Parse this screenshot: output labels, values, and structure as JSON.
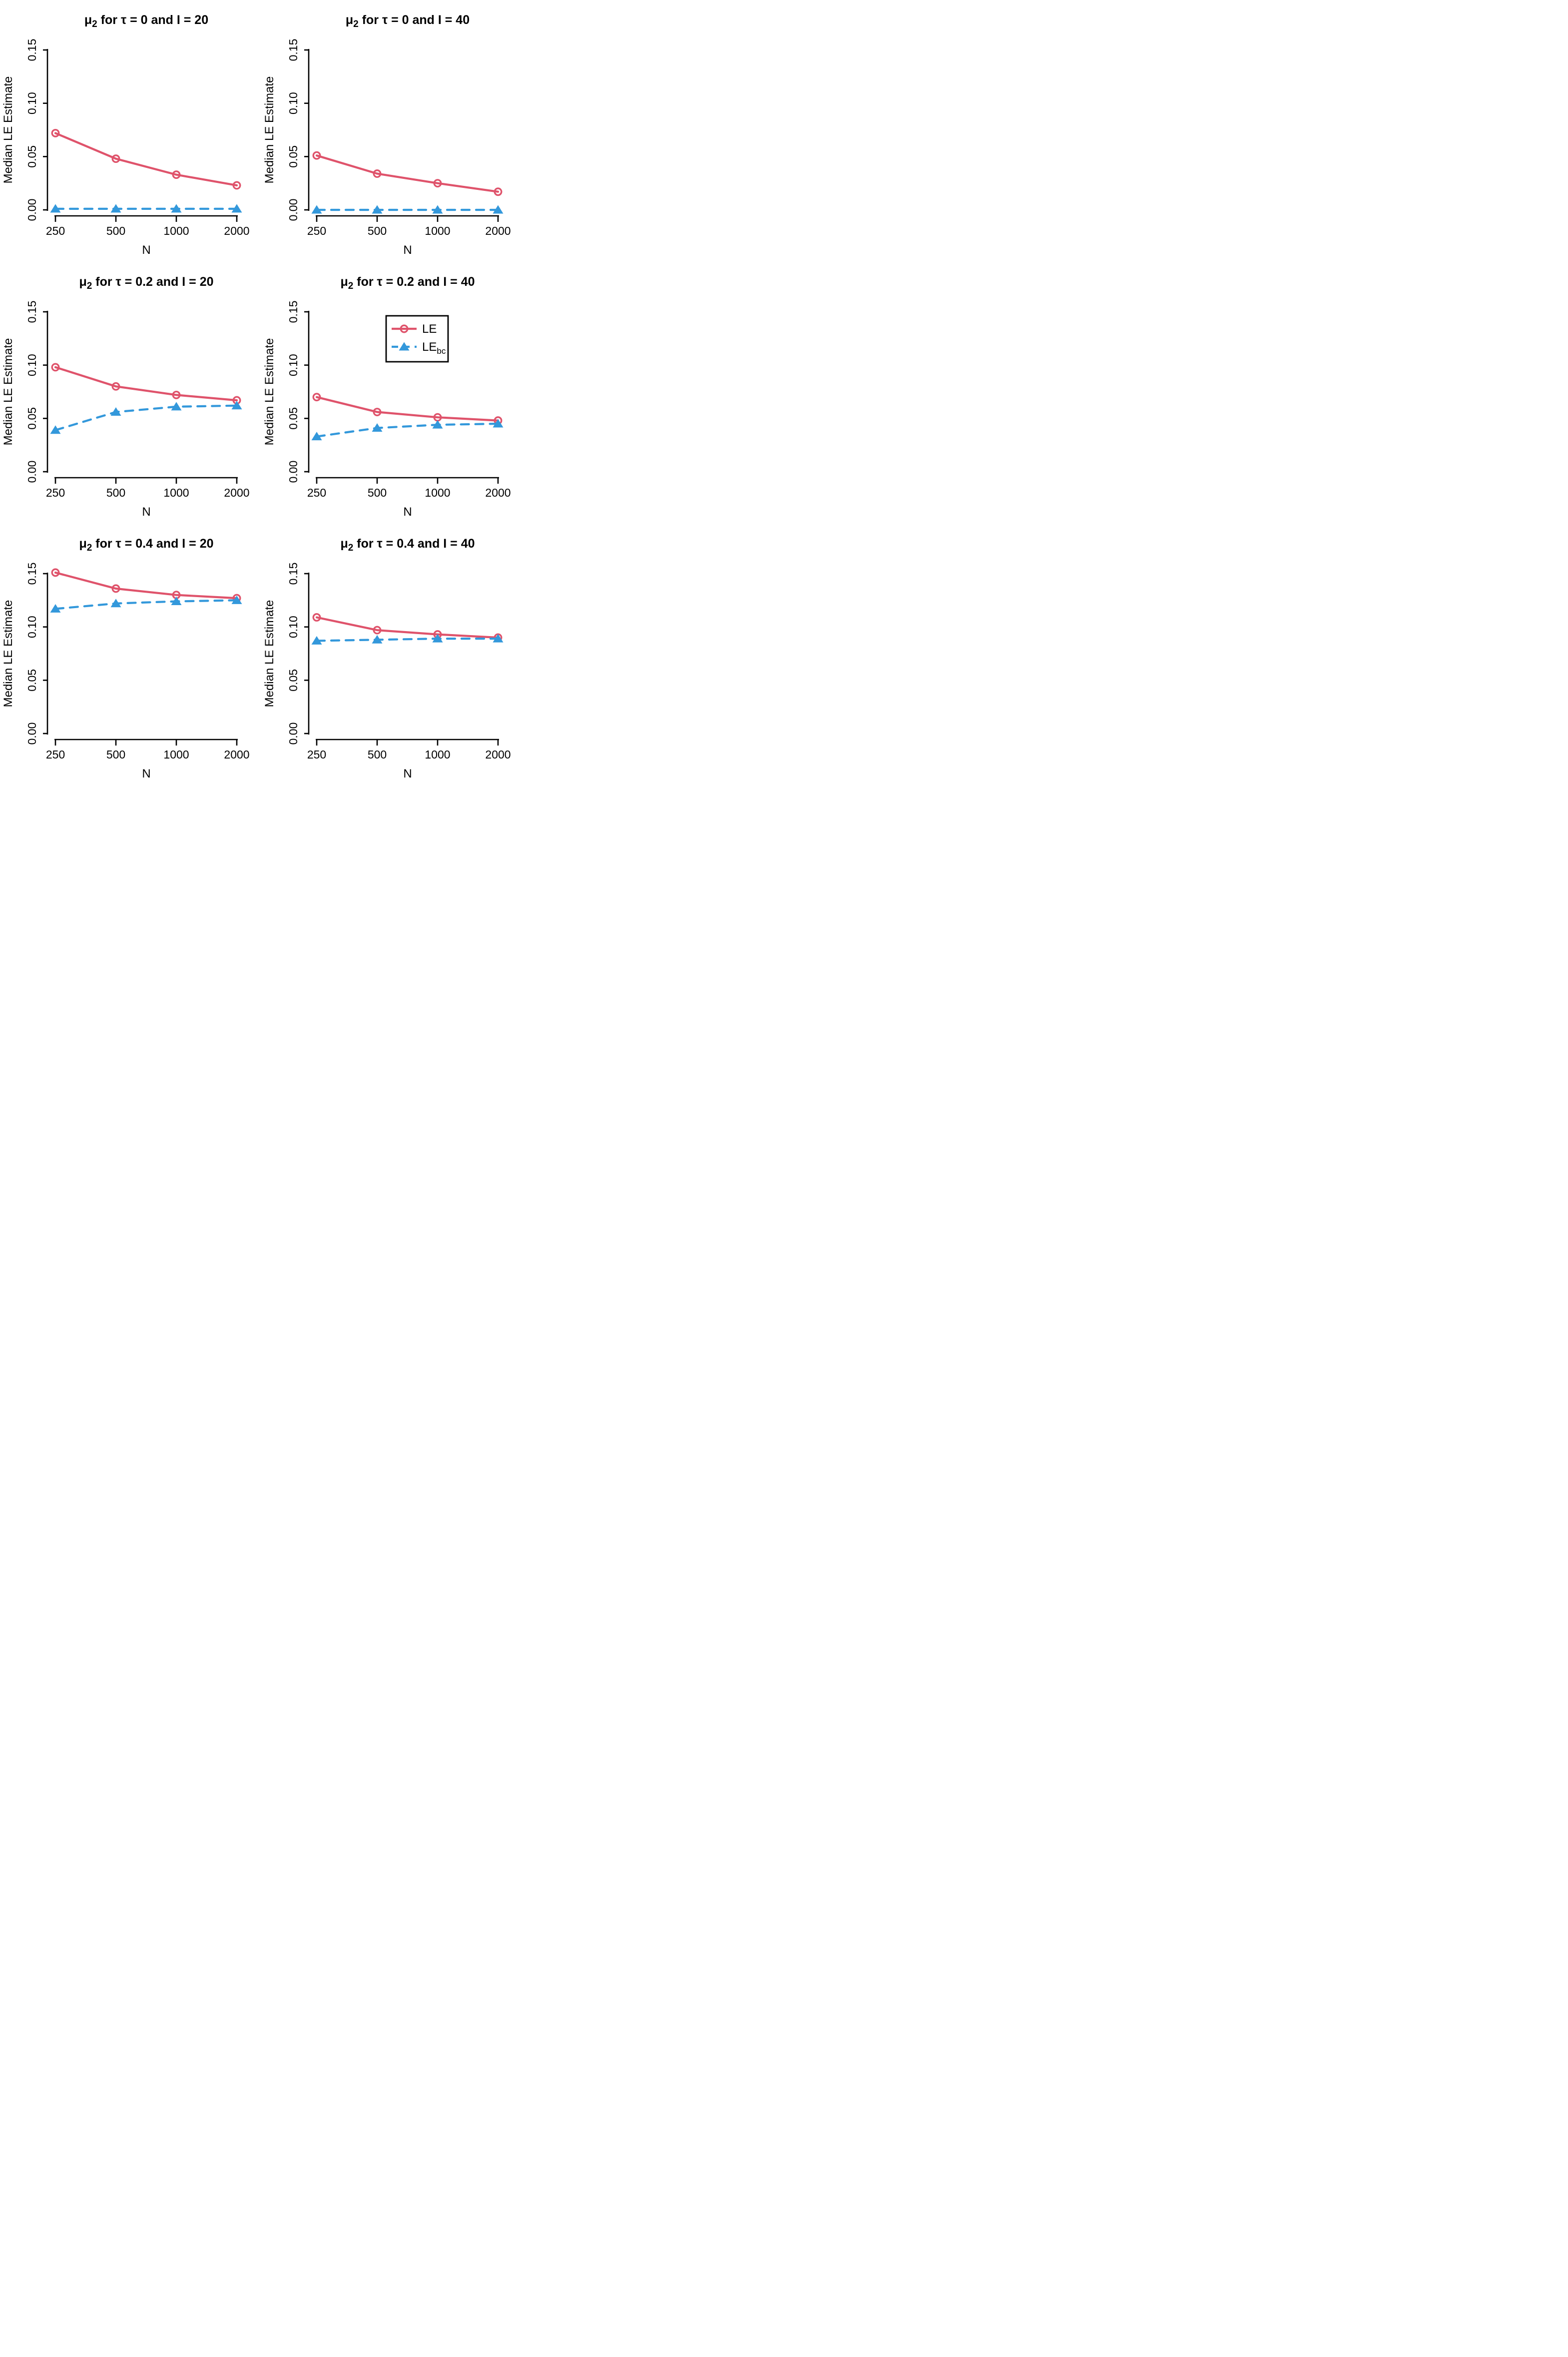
{
  "page": {
    "background": "#ffffff"
  },
  "styles": {
    "le_color": "#DF536B",
    "lebc_color": "#3398DB",
    "axis_color": "#000000",
    "text_color": "#000000"
  },
  "axes": {
    "xlabel": "N",
    "ylabel": "Median LE Estimate",
    "x_tick_labels": [
      "250",
      "500",
      "1000",
      "2000"
    ],
    "y_tick_labels": [
      "0.00",
      "0.05",
      "0.10",
      "0.15"
    ],
    "y_tick_values": [
      0,
      0.05,
      0.1,
      0.15
    ],
    "ylim": [
      0,
      0.15
    ],
    "x_scale_note": "log2-spaced categories"
  },
  "legend": {
    "panel_index": 3,
    "position": "top-center",
    "items": [
      {
        "label": "LE",
        "sub": "",
        "series": "LE"
      },
      {
        "label": "LE",
        "sub": "bc",
        "series": "LEbc"
      }
    ]
  },
  "chart_data": [
    {
      "type": "line",
      "id": "tau0-i20",
      "title": {
        "mu": "μ",
        "sub": "2",
        "rest": " for τ = 0 and I = 20"
      },
      "xlabel": "N",
      "ylabel": "Median LE Estimate",
      "x": [
        250,
        500,
        1000,
        2000
      ],
      "ylim": [
        0,
        0.15
      ],
      "series": [
        {
          "name": "LE",
          "marker": "circle",
          "line": "solid",
          "values": [
            0.072,
            0.048,
            0.033,
            0.023
          ]
        },
        {
          "name": "LEbc",
          "marker": "triangle",
          "line": "dashed",
          "values": [
            0.001,
            0.001,
            0.001,
            0.001
          ]
        }
      ]
    },
    {
      "type": "line",
      "id": "tau0-i40",
      "title": {
        "mu": "μ",
        "sub": "2",
        "rest": " for τ = 0 and I = 40"
      },
      "xlabel": "N",
      "ylabel": "Median LE Estimate",
      "x": [
        250,
        500,
        1000,
        2000
      ],
      "ylim": [
        0,
        0.15
      ],
      "series": [
        {
          "name": "LE",
          "marker": "circle",
          "line": "solid",
          "values": [
            0.051,
            0.034,
            0.025,
            0.017
          ]
        },
        {
          "name": "LEbc",
          "marker": "triangle",
          "line": "dashed",
          "values": [
            0.0,
            0.0,
            0.0,
            0.0
          ]
        }
      ]
    },
    {
      "type": "line",
      "id": "tau02-i20",
      "title": {
        "mu": "μ",
        "sub": "2",
        "rest": " for τ = 0.2 and I = 20"
      },
      "xlabel": "N",
      "ylabel": "Median LE Estimate",
      "x": [
        250,
        500,
        1000,
        2000
      ],
      "ylim": [
        0,
        0.15
      ],
      "series": [
        {
          "name": "LE",
          "marker": "circle",
          "line": "solid",
          "values": [
            0.098,
            0.08,
            0.072,
            0.067
          ]
        },
        {
          "name": "LEbc",
          "marker": "triangle",
          "line": "dashed",
          "values": [
            0.039,
            0.056,
            0.061,
            0.062
          ]
        }
      ]
    },
    {
      "type": "line",
      "id": "tau02-i40",
      "title": {
        "mu": "μ",
        "sub": "2",
        "rest": " for τ = 0.2 and I = 40"
      },
      "xlabel": "N",
      "ylabel": "Median LE Estimate",
      "x": [
        250,
        500,
        1000,
        2000
      ],
      "ylim": [
        0,
        0.15
      ],
      "series": [
        {
          "name": "LE",
          "marker": "circle",
          "line": "solid",
          "values": [
            0.07,
            0.056,
            0.051,
            0.048
          ]
        },
        {
          "name": "LEbc",
          "marker": "triangle",
          "line": "dashed",
          "values": [
            0.033,
            0.041,
            0.044,
            0.045
          ]
        }
      ]
    },
    {
      "type": "line",
      "id": "tau04-i20",
      "title": {
        "mu": "μ",
        "sub": "2",
        "rest": " for τ = 0.4 and I = 20"
      },
      "xlabel": "N",
      "ylabel": "Median LE Estimate",
      "x": [
        250,
        500,
        1000,
        2000
      ],
      "ylim": [
        0,
        0.15
      ],
      "series": [
        {
          "name": "LE",
          "marker": "circle",
          "line": "solid",
          "values": [
            0.151,
            0.136,
            0.13,
            0.127
          ]
        },
        {
          "name": "LEbc",
          "marker": "triangle",
          "line": "dashed",
          "values": [
            0.117,
            0.122,
            0.124,
            0.125
          ]
        }
      ]
    },
    {
      "type": "line",
      "id": "tau04-i40",
      "title": {
        "mu": "μ",
        "sub": "2",
        "rest": " for τ = 0.4 and I = 40"
      },
      "xlabel": "N",
      "ylabel": "Median LE Estimate",
      "x": [
        250,
        500,
        1000,
        2000
      ],
      "ylim": [
        0,
        0.15
      ],
      "series": [
        {
          "name": "LE",
          "marker": "circle",
          "line": "solid",
          "values": [
            0.109,
            0.097,
            0.093,
            0.09
          ]
        },
        {
          "name": "LEbc",
          "marker": "triangle",
          "line": "dashed",
          "values": [
            0.087,
            0.088,
            0.089,
            0.089
          ]
        }
      ]
    }
  ]
}
